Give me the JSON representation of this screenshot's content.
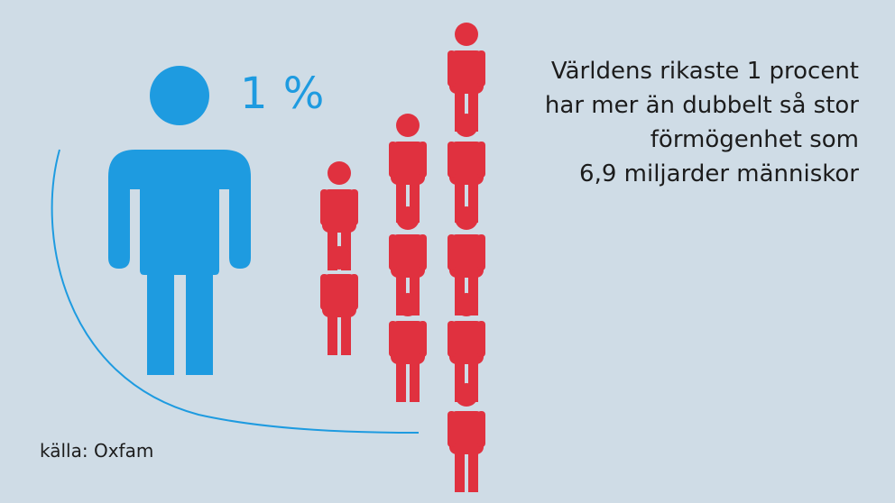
{
  "percent_label": "1 %",
  "headline": {
    "line1": "Världens rikaste 1 procent",
    "line2": "har mer än dubbelt så stor",
    "line3": "förmögenhet som",
    "line4": "6,9 miljarder människor"
  },
  "source": "källa: Oxfam",
  "colors": {
    "background": "#cfdce6",
    "rich_figure": "#1e9be0",
    "people_figures": "#e0313f",
    "text": "#1c1c1c"
  },
  "icons": {
    "rich": "person-icon",
    "people": "person-icon"
  }
}
